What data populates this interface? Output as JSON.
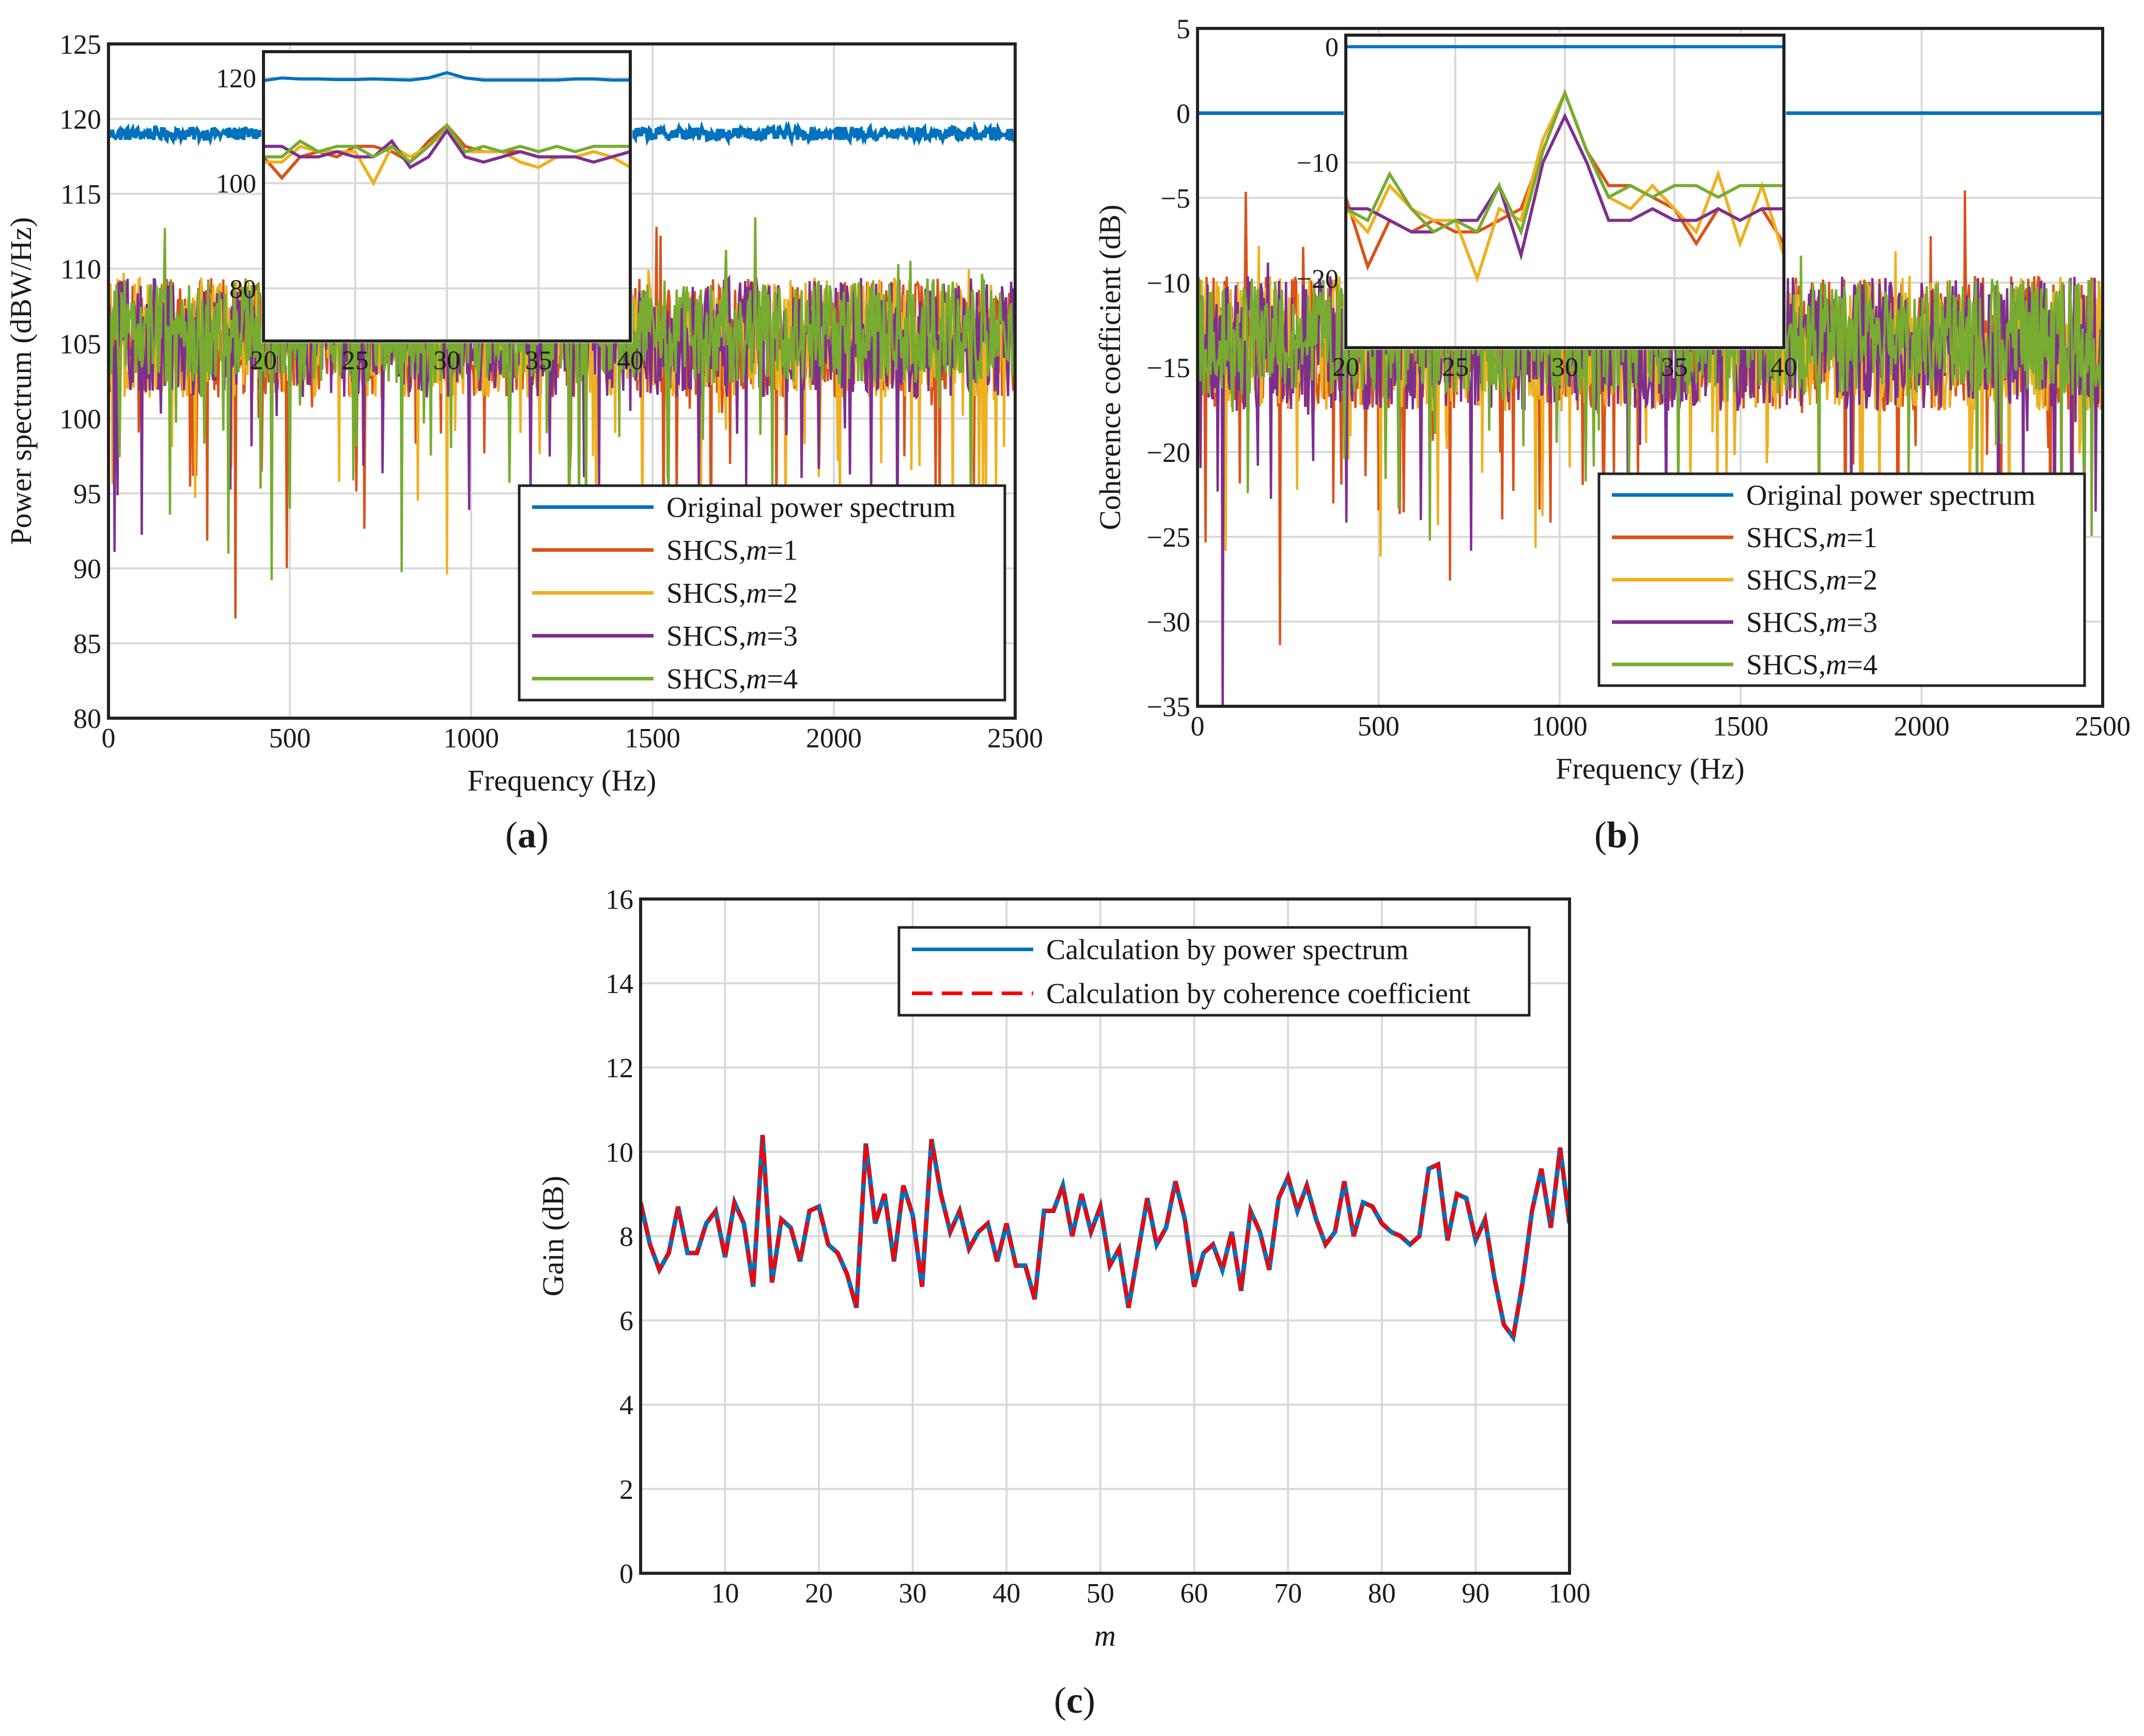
{
  "colors": {
    "original": "#0072BD",
    "m1": "#D95319",
    "m2": "#EDB120",
    "m3": "#7E2F8E",
    "m4": "#77AC30",
    "coherence": "#FF0000"
  },
  "panels": {
    "a": "a",
    "b": "b",
    "c": "c"
  },
  "chart_data": [
    {
      "id": "a",
      "type": "line",
      "xlabel": "Frequency (Hz)",
      "ylabel": "Power spectrum (dBW/Hz)",
      "xlim": [
        0,
        2500
      ],
      "ylim": [
        80,
        125
      ],
      "xticks": [
        0,
        500,
        1000,
        1500,
        2000,
        2500
      ],
      "yticks": [
        80,
        85,
        90,
        95,
        100,
        105,
        110,
        115,
        120,
        125
      ],
      "series": [
        {
          "name": "Original power spectrum",
          "key": "original",
          "level": 119,
          "spread": 0.45
        },
        {
          "name": "SHCS,m=1",
          "key": "m1",
          "level": 105,
          "spread": 4
        },
        {
          "name": "SHCS,m=2",
          "key": "m2",
          "level": 105,
          "spread": 4
        },
        {
          "name": "SHCS,m=3",
          "key": "m3",
          "level": 105,
          "spread": 4
        },
        {
          "name": "SHCS,m=4",
          "key": "m4",
          "level": 105.5,
          "spread": 3.5
        }
      ],
      "legend": {
        "entries": [
          {
            "label": "Original power spectrum",
            "key": "original"
          },
          {
            "label": "SHCS,",
            "m": "m",
            "eq": "=1",
            "key": "m1"
          },
          {
            "label": "SHCS,",
            "m": "m",
            "eq": "=2",
            "key": "m2"
          },
          {
            "label": "SHCS,",
            "m": "m",
            "eq": "=3",
            "key": "m3"
          },
          {
            "label": "SHCS,",
            "m": "m",
            "eq": "=4",
            "key": "m4"
          }
        ],
        "placement": "bottom-right"
      },
      "inset": {
        "xlim": [
          20,
          40
        ],
        "ylim": [
          70,
          125
        ],
        "xticks": [
          20,
          25,
          30,
          35,
          40
        ],
        "yticks": [
          80,
          100,
          120
        ],
        "x": [
          20,
          21,
          22,
          23,
          24,
          25,
          26,
          27,
          28,
          29,
          30,
          31,
          32,
          33,
          34,
          35,
          36,
          37,
          38,
          39,
          40
        ],
        "series": {
          "original": [
            119.5,
            120,
            119.8,
            119.8,
            119.7,
            119.7,
            119.8,
            119.7,
            119.6,
            120,
            121,
            120,
            119.6,
            119.6,
            119.6,
            119.6,
            119.6,
            119.8,
            119.8,
            119.6,
            119.6
          ],
          "m1": [
            105,
            101,
            105,
            106,
            105,
            107,
            107,
            106,
            104,
            108,
            111,
            107,
            106,
            106,
            106,
            105,
            105,
            105,
            106,
            105,
            106
          ],
          "m2": [
            104,
            104,
            107,
            106,
            106,
            106,
            100,
            107,
            105,
            107,
            110,
            106,
            106,
            106,
            104,
            103,
            105,
            105,
            106,
            105,
            103
          ],
          "m3": [
            107,
            107,
            105,
            105,
            106,
            105,
            105,
            108,
            103,
            105,
            110,
            105,
            104,
            105,
            106,
            105,
            105,
            105,
            104,
            105,
            106
          ],
          "m4": [
            105,
            105,
            108,
            106,
            107,
            107,
            105,
            107,
            104,
            107,
            111,
            106,
            107,
            106,
            107,
            106,
            107,
            106,
            107,
            107,
            107
          ]
        }
      }
    },
    {
      "id": "b",
      "type": "line",
      "xlabel": "Frequency (Hz)",
      "ylabel": "Coherence coefficient (dB)",
      "xlim": [
        0,
        2500
      ],
      "ylim": [
        -35,
        5
      ],
      "xticks": [
        0,
        500,
        1000,
        1500,
        2000,
        2500
      ],
      "yticks": [
        -35,
        -30,
        -25,
        -20,
        -15,
        -10,
        -5,
        0,
        5
      ],
      "yticklabels": [
        "−35",
        "−30",
        "−25",
        "−20",
        "−15",
        "−10",
        "−5",
        "0",
        "5"
      ],
      "series": [
        {
          "name": "Original power spectrum",
          "key": "original",
          "level": 0,
          "spread": 0
        },
        {
          "name": "SHCS,m=1",
          "key": "m1",
          "level": -14,
          "spread": 4
        },
        {
          "name": "SHCS,m=2",
          "key": "m2",
          "level": -14,
          "spread": 4
        },
        {
          "name": "SHCS,m=3",
          "key": "m3",
          "level": -14,
          "spread": 4
        },
        {
          "name": "SHCS,m=4",
          "key": "m4",
          "level": -13.5,
          "spread": 3.5
        }
      ],
      "legend": {
        "entries": [
          {
            "label": "Original power spectrum",
            "key": "original"
          },
          {
            "label": "SHCS,",
            "m": "m",
            "eq": "=1",
            "key": "m1"
          },
          {
            "label": "SHCS,",
            "m": "m",
            "eq": "=2",
            "key": "m2"
          },
          {
            "label": "SHCS,",
            "m": "m",
            "eq": "=3",
            "key": "m3"
          },
          {
            "label": "SHCS,",
            "m": "m",
            "eq": "=4",
            "key": "m4"
          }
        ],
        "placement": "bottom-right"
      },
      "inset": {
        "xlim": [
          20,
          40
        ],
        "ylim": [
          -26,
          1
        ],
        "xticks": [
          20,
          25,
          30,
          35,
          40
        ],
        "yticks": [
          -20,
          -10,
          0
        ],
        "yticklabels": [
          "−20",
          "−10",
          "0"
        ],
        "x": [
          20,
          21,
          22,
          23,
          24,
          25,
          26,
          27,
          28,
          29,
          30,
          31,
          32,
          33,
          34,
          35,
          36,
          37,
          38,
          39,
          40
        ],
        "series": {
          "original": [
            0,
            0,
            0,
            0,
            0,
            0,
            0,
            0,
            0,
            0,
            0,
            0,
            0,
            0,
            0,
            0,
            0,
            0,
            0,
            0,
            0
          ],
          "m1": [
            -13,
            -19,
            -15,
            -16,
            -15,
            -16,
            -16,
            -15,
            -14,
            -9,
            -4,
            -9,
            -12,
            -12,
            -13,
            -14,
            -17,
            -14,
            -15,
            -14,
            -17
          ],
          "m2": [
            -14,
            -16,
            -12,
            -14,
            -15,
            -15,
            -20,
            -14,
            -15,
            -8,
            -4,
            -9,
            -13,
            -14,
            -12,
            -14,
            -16,
            -11,
            -17,
            -12,
            -18
          ],
          "m3": [
            -14,
            -14,
            -15,
            -16,
            -16,
            -15,
            -15,
            -12,
            -18,
            -10,
            -6,
            -10,
            -15,
            -15,
            -14,
            -15,
            -15,
            -14,
            -15,
            -14,
            -14
          ],
          "m4": [
            -14,
            -15,
            -11,
            -14,
            -16,
            -15,
            -16,
            -12,
            -16,
            -9,
            -4,
            -9,
            -13,
            -12,
            -13,
            -12,
            -12,
            -13,
            -12,
            -12,
            -12
          ]
        }
      }
    },
    {
      "id": "c",
      "type": "line",
      "xlabel": "m",
      "ylabel": "Gain (dB)",
      "xlim": [
        1,
        100
      ],
      "ylim": [
        0,
        16
      ],
      "xticks": [
        10,
        20,
        30,
        40,
        50,
        60,
        70,
        80,
        90,
        100
      ],
      "yticks": [
        0,
        2,
        4,
        6,
        8,
        10,
        12,
        14,
        16
      ],
      "x": [
        1,
        2,
        3,
        4,
        5,
        6,
        7,
        8,
        9,
        10,
        11,
        12,
        13,
        14,
        15,
        16,
        17,
        18,
        19,
        20,
        21,
        22,
        23,
        24,
        25,
        26,
        27,
        28,
        29,
        30,
        31,
        32,
        33,
        34,
        35,
        36,
        37,
        38,
        39,
        40,
        41,
        42,
        43,
        44,
        45,
        46,
        47,
        48,
        49,
        50,
        51,
        52,
        53,
        54,
        55,
        56,
        57,
        58,
        59,
        60,
        61,
        62,
        63,
        64,
        65,
        66,
        67,
        68,
        69,
        70,
        71,
        72,
        73,
        74,
        75,
        76,
        77,
        78,
        79,
        80,
        81,
        82,
        83,
        84,
        85,
        86,
        87,
        88,
        89,
        90,
        91,
        92,
        93,
        94,
        95,
        96,
        97,
        98,
        99,
        100
      ],
      "series": [
        {
          "name": "Calculation by power spectrum",
          "key": "original",
          "dashed": false,
          "values": [
            8.8,
            7.8,
            7.2,
            7.6,
            8.7,
            7.6,
            7.6,
            8.3,
            8.6,
            7.5,
            8.8,
            8.3,
            6.8,
            10.4,
            6.9,
            8.4,
            8.2,
            7.4,
            8.6,
            8.7,
            7.8,
            7.6,
            7.1,
            6.3,
            10.2,
            8.3,
            9.0,
            7.4,
            9.2,
            8.5,
            6.8,
            10.3,
            9.0,
            8.1,
            8.6,
            7.7,
            8.1,
            8.3,
            7.4,
            8.3,
            7.3,
            7.3,
            6.5,
            8.6,
            8.6,
            9.2,
            8.0,
            9.0,
            8.1,
            8.7,
            7.3,
            7.7,
            6.3,
            7.6,
            8.9,
            7.8,
            8.2,
            9.3,
            8.4,
            6.8,
            7.6,
            7.8,
            7.2,
            8.1,
            6.7,
            8.6,
            8.1,
            7.2,
            8.9,
            9.4,
            8.6,
            9.2,
            8.4,
            7.8,
            8.1,
            9.3,
            8.0,
            8.8,
            8.7,
            8.3,
            8.1,
            8.0,
            7.8,
            8.0,
            9.6,
            9.7,
            7.9,
            9.0,
            8.9,
            7.9,
            8.4,
            7.0,
            5.9,
            5.6,
            6.9,
            8.6,
            9.6,
            8.2,
            10.1,
            8.3
          ]
        },
        {
          "name": "Calculation by coherence coefficient",
          "key": "coherence",
          "dashed": true,
          "values": [
            8.8,
            7.8,
            7.2,
            7.6,
            8.7,
            7.6,
            7.6,
            8.3,
            8.6,
            7.5,
            8.8,
            8.3,
            6.8,
            10.4,
            6.9,
            8.4,
            8.2,
            7.4,
            8.6,
            8.7,
            7.8,
            7.6,
            7.1,
            6.3,
            10.2,
            8.3,
            9.0,
            7.4,
            9.2,
            8.5,
            6.8,
            10.3,
            9.0,
            8.1,
            8.6,
            7.7,
            8.1,
            8.3,
            7.4,
            8.3,
            7.3,
            7.3,
            6.5,
            8.6,
            8.6,
            9.2,
            8.0,
            9.0,
            8.1,
            8.7,
            7.3,
            7.7,
            6.3,
            7.6,
            8.9,
            7.8,
            8.2,
            9.3,
            8.4,
            6.8,
            7.6,
            7.8,
            7.2,
            8.1,
            6.7,
            8.6,
            8.1,
            7.2,
            8.9,
            9.4,
            8.6,
            9.2,
            8.4,
            7.8,
            8.1,
            9.3,
            8.0,
            8.8,
            8.7,
            8.3,
            8.1,
            8.0,
            7.8,
            8.0,
            9.6,
            9.7,
            7.9,
            9.0,
            8.9,
            7.9,
            8.4,
            7.0,
            5.9,
            5.6,
            6.9,
            8.6,
            9.6,
            8.2,
            10.1,
            8.3
          ]
        }
      ],
      "legend": {
        "entries": [
          {
            "label": "Calculation by power spectrum",
            "key": "original"
          },
          {
            "label": "Calculation by coherence coefficient",
            "key": "coherence"
          }
        ],
        "placement": "top-right"
      }
    }
  ]
}
